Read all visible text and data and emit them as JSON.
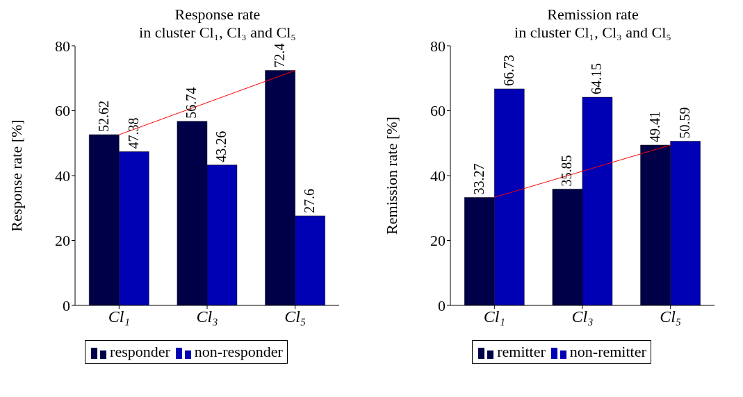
{
  "chart_data": [
    {
      "type": "bar",
      "title": "Response rate\nin cluster Cl₁, Cl₃ and Cl₅",
      "ylabel": "Response rate [%]",
      "categories": [
        "Cl₁",
        "Cl₃",
        "Cl₅"
      ],
      "series": [
        {
          "name": "responder",
          "color": "#000048",
          "values": [
            52.62,
            56.74,
            72.4
          ],
          "value_labels": [
            "52.62",
            "56.74",
            "72.4"
          ]
        },
        {
          "name": "non-responder",
          "color": "#0000b4",
          "values": [
            47.38,
            43.26,
            27.6
          ],
          "value_labels": [
            "47.38",
            "43.26",
            "27.6"
          ]
        },
        {
          "type": "line",
          "color": "#ff0000",
          "x": [
            "Cl₁",
            "Cl₅"
          ],
          "values": [
            52.6,
            72.4
          ]
        }
      ],
      "ylim": [
        0,
        80
      ],
      "yticks": [
        0,
        20,
        40,
        60,
        80
      ],
      "legend": "bottom",
      "grid": false
    },
    {
      "type": "bar",
      "title": "Remission rate\nin cluster Cl₁, Cl₃ and Cl₅",
      "ylabel": "Remission rate [%]",
      "categories": [
        "Cl₁",
        "Cl₃",
        "Cl₅"
      ],
      "series": [
        {
          "name": "remitter",
          "color": "#000048",
          "values": [
            33.27,
            35.85,
            49.41
          ],
          "value_labels": [
            "33.27",
            "35.85",
            "49.41"
          ]
        },
        {
          "name": "non-remitter",
          "color": "#0000b4",
          "values": [
            66.73,
            64.15,
            50.59
          ],
          "value_labels": [
            "66.73",
            "64.15",
            "50.59"
          ]
        },
        {
          "type": "line",
          "color": "#ff0000",
          "x": [
            "Cl₁",
            "Cl₅"
          ],
          "values": [
            33.3,
            49.4
          ]
        }
      ],
      "ylim": [
        0,
        80
      ],
      "yticks": [
        0,
        20,
        40,
        60,
        80
      ],
      "legend": "bottom",
      "grid": false
    }
  ]
}
